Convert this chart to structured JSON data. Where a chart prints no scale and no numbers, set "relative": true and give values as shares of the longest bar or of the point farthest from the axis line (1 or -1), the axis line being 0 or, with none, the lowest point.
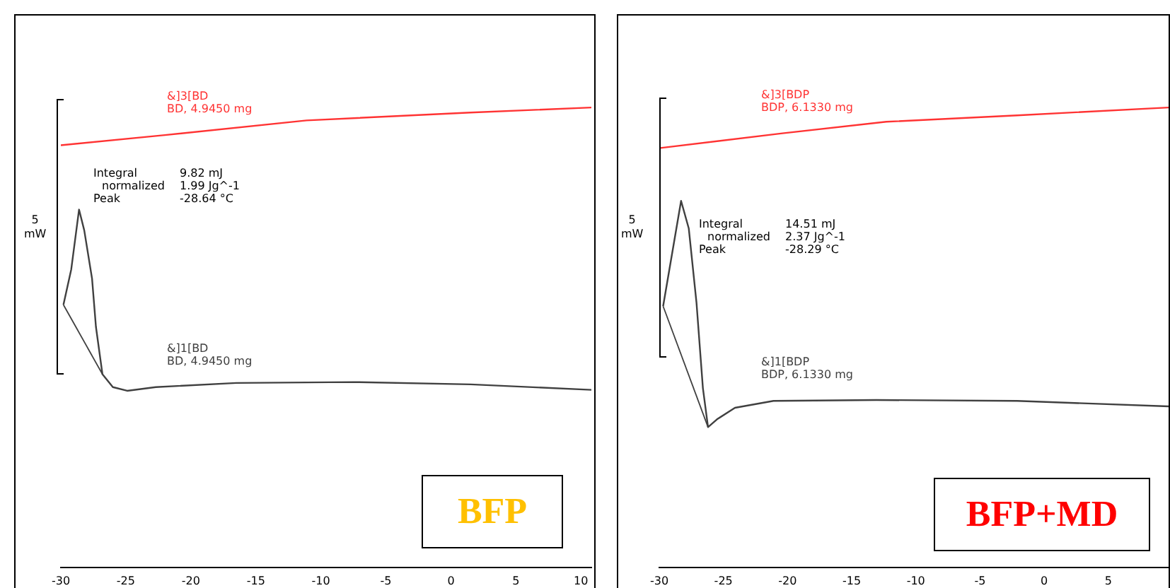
{
  "chart_data": [
    {
      "type": "line",
      "title": "BFP",
      "relative": true,
      "grid": false,
      "legend": false,
      "marker": "none",
      "line_style": "solid",
      "tick_labels": "x",
      "xlim": [
        -30,
        10.8
      ],
      "xticks": [
        -30,
        -25,
        -20,
        -15,
        -10,
        -5,
        0,
        5,
        10
      ],
      "series": [
        {
          "name": "&]3[BD\nBD, 4.9450 mg",
          "color": "#ff3333",
          "x": [
            -30,
            -22.0,
            -11.1,
            1.5,
            10.8
          ],
          "values": [
            0.918,
            0.94,
            0.972,
            0.989,
            1.0
          ]
        },
        {
          "name": "&]1[BD\nBD, 4.9450 mg",
          "color": "#404040",
          "x": [
            -29.8,
            -29.2,
            -28.6,
            -28.2,
            -27.6,
            -27.3,
            -26.8,
            -26.0,
            -24.9,
            -22.7,
            -16.5,
            -7.5,
            1.5,
            10.8
          ],
          "values": [
            0.571,
            0.648,
            0.778,
            0.733,
            0.628,
            0.523,
            0.42,
            0.392,
            0.384,
            0.392,
            0.401,
            0.403,
            0.398,
            0.386
          ]
        },
        {
          "color": "#404040",
          "x": [
            -29.8,
            -26.8
          ],
          "values": [
            0.571,
            0.42
          ]
        }
      ],
      "annotations": [
        "5\nmW",
        "Integral",
        "9.82 mJ",
        "normalized",
        "1.99 Jg^-1",
        "Peak",
        "-28.64 °C"
      ]
    },
    {
      "type": "line",
      "title": "BFP+MD",
      "relative": true,
      "grid": false,
      "legend": false,
      "marker": "none",
      "line_style": "solid",
      "tick_labels": "x",
      "xlim": [
        -30,
        9.7
      ],
      "xticks": [
        -30,
        -25,
        -20,
        -15,
        -10,
        -5,
        0,
        5
      ],
      "series": [
        {
          "name": "&]3[BDP\nBDP, 6.1330 mg",
          "color": "#ff3333",
          "x": [
            -29.9,
            -20.4,
            -12.3,
            -2.1,
            9.7
          ],
          "values": [
            0.912,
            0.944,
            0.969,
            0.983,
            1.0
          ]
        },
        {
          "name": "&]1[BDP\nBDP, 6.1330 mg",
          "color": "#404040",
          "x": [
            -29.7,
            -28.3,
            -27.7,
            -27.1,
            -26.6,
            -26.2,
            -25.5,
            -24.1,
            -21.1,
            -13.1,
            -2.1,
            9.7
          ],
          "values": [
            0.568,
            0.797,
            0.737,
            0.576,
            0.39,
            0.305,
            0.322,
            0.347,
            0.362,
            0.364,
            0.362,
            0.35
          ]
        },
        {
          "color": "#404040",
          "x": [
            -29.7,
            -26.2
          ],
          "values": [
            0.568,
            0.305
          ]
        }
      ],
      "annotations": [
        "5\nmW",
        "Integral",
        "14.51 mJ",
        "normalized",
        "2.37 Jg^-1",
        "Peak",
        "-28.29 °C"
      ]
    }
  ]
}
